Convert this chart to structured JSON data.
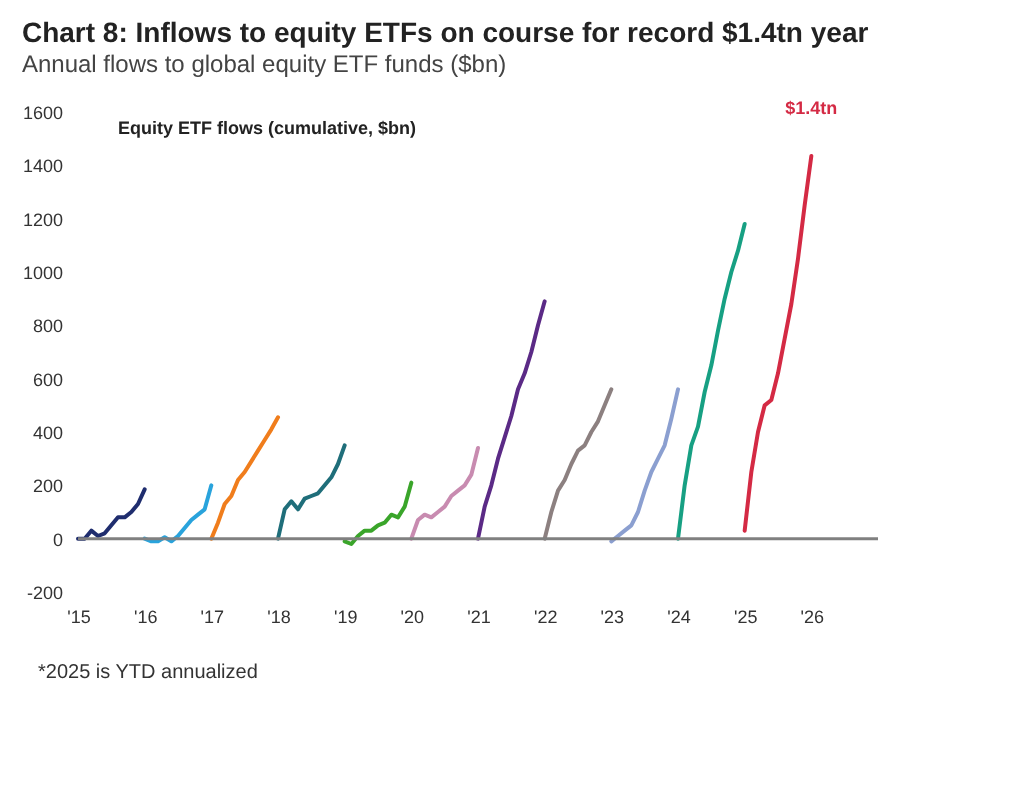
{
  "chart_data": {
    "type": "line",
    "title": "Chart 8: Inflows to equity ETFs on course for record $1.4tn year",
    "subtitle": "Annual flows to global equity ETF funds ($bn)",
    "annotations": [
      "Equity ETF flows (cumulative, $bn)",
      "$1.4tn",
      "*2025 is YTD annualized"
    ],
    "series": [
      {
        "color": "#1f2d6e",
        "x": [
          2015.0,
          2015.1,
          2015.2,
          2015.3,
          2015.4,
          2015.5,
          2015.6,
          2015.7,
          2015.8,
          2015.9,
          2016.0
        ],
        "values": [
          0,
          0,
          30,
          10,
          20,
          50,
          80,
          80,
          100,
          130,
          185
        ]
      },
      {
        "color": "#29a3dc",
        "x": [
          2016.0,
          2016.1,
          2016.2,
          2016.3,
          2016.4,
          2016.5,
          2016.6,
          2016.7,
          2016.8,
          2016.9,
          2017.0
        ],
        "values": [
          0,
          -10,
          -10,
          5,
          -10,
          10,
          40,
          70,
          90,
          110,
          200
        ]
      },
      {
        "color": "#f07d1c",
        "x": [
          2017.0,
          2017.1,
          2017.2,
          2017.3,
          2017.4,
          2017.5,
          2017.6,
          2017.7,
          2017.8,
          2017.9,
          2018.0
        ],
        "values": [
          0,
          60,
          130,
          160,
          220,
          250,
          290,
          330,
          370,
          410,
          455
        ]
      },
      {
        "color": "#1f6e7a",
        "x": [
          2018.0,
          2018.1,
          2018.2,
          2018.3,
          2018.4,
          2018.5,
          2018.6,
          2018.7,
          2018.8,
          2018.9,
          2019.0
        ],
        "values": [
          0,
          110,
          140,
          110,
          150,
          160,
          170,
          200,
          230,
          280,
          350
        ]
      },
      {
        "color": "#3aa52a",
        "x": [
          2019.0,
          2019.1,
          2019.2,
          2019.3,
          2019.4,
          2019.5,
          2019.6,
          2019.7,
          2019.8,
          2019.9,
          2020.0
        ],
        "values": [
          -10,
          -20,
          10,
          30,
          30,
          50,
          60,
          90,
          80,
          120,
          210
        ]
      },
      {
        "color": "#c88bb0",
        "x": [
          2020.0,
          2020.1,
          2020.2,
          2020.3,
          2020.4,
          2020.5,
          2020.6,
          2020.7,
          2020.8,
          2020.9,
          2021.0
        ],
        "values": [
          0,
          70,
          90,
          80,
          100,
          120,
          160,
          180,
          200,
          240,
          340
        ]
      },
      {
        "color": "#5b2a86",
        "x": [
          2021.0,
          2021.1,
          2021.2,
          2021.3,
          2021.4,
          2021.5,
          2021.6,
          2021.7,
          2021.8,
          2021.9,
          2022.0
        ],
        "values": [
          0,
          120,
          200,
          300,
          380,
          460,
          560,
          620,
          700,
          800,
          890
        ]
      },
      {
        "color": "#8c8080",
        "x": [
          2022.0,
          2022.1,
          2022.2,
          2022.3,
          2022.4,
          2022.5,
          2022.6,
          2022.7,
          2022.8,
          2022.9,
          2023.0
        ],
        "values": [
          0,
          100,
          180,
          220,
          280,
          330,
          350,
          400,
          440,
          500,
          560
        ]
      },
      {
        "color": "#8b9fd0",
        "x": [
          2023.0,
          2023.1,
          2023.2,
          2023.3,
          2023.4,
          2023.5,
          2023.6,
          2023.7,
          2023.8,
          2023.9,
          2024.0
        ],
        "values": [
          -10,
          10,
          30,
          50,
          100,
          180,
          250,
          300,
          350,
          450,
          560
        ]
      },
      {
        "color": "#17a083",
        "x": [
          2024.0,
          2024.1,
          2024.2,
          2024.3,
          2024.4,
          2024.5,
          2024.6,
          2024.7,
          2024.8,
          2024.9,
          2025.0
        ],
        "values": [
          0,
          200,
          350,
          420,
          550,
          650,
          780,
          900,
          1000,
          1080,
          1180
        ]
      },
      {
        "color": "#d42a44",
        "x": [
          2025.0,
          2025.1,
          2025.2,
          2025.3,
          2025.4,
          2025.5,
          2025.6,
          2025.7,
          2025.8,
          2025.9,
          2026.0
        ],
        "values": [
          30,
          250,
          400,
          500,
          520,
          620,
          750,
          880,
          1050,
          1250,
          1435
        ]
      }
    ],
    "xlim": [
      2015,
      2027
    ],
    "xticks": [
      {
        "value": 2015,
        "label": "'15"
      },
      {
        "value": 2016,
        "label": "'16"
      },
      {
        "value": 2017,
        "label": "'17"
      },
      {
        "value": 2018,
        "label": "'18"
      },
      {
        "value": 2019,
        "label": "'19"
      },
      {
        "value": 2020,
        "label": "'20"
      },
      {
        "value": 2021,
        "label": "'21"
      },
      {
        "value": 2022,
        "label": "'22"
      },
      {
        "value": 2023,
        "label": "'23"
      },
      {
        "value": 2024,
        "label": "'24"
      },
      {
        "value": 2025,
        "label": "'25"
      },
      {
        "value": 2026,
        "label": "'26"
      }
    ],
    "ylim": [
      -200,
      1600
    ],
    "yticks": [
      -200,
      0,
      200,
      400,
      600,
      800,
      1000,
      1200,
      1400,
      1600
    ],
    "ref_lines": [
      {
        "axis": "y",
        "value": 0,
        "color": "#808080"
      }
    ],
    "grid": false,
    "legend": false,
    "marker": "none",
    "line_style": "solid"
  }
}
